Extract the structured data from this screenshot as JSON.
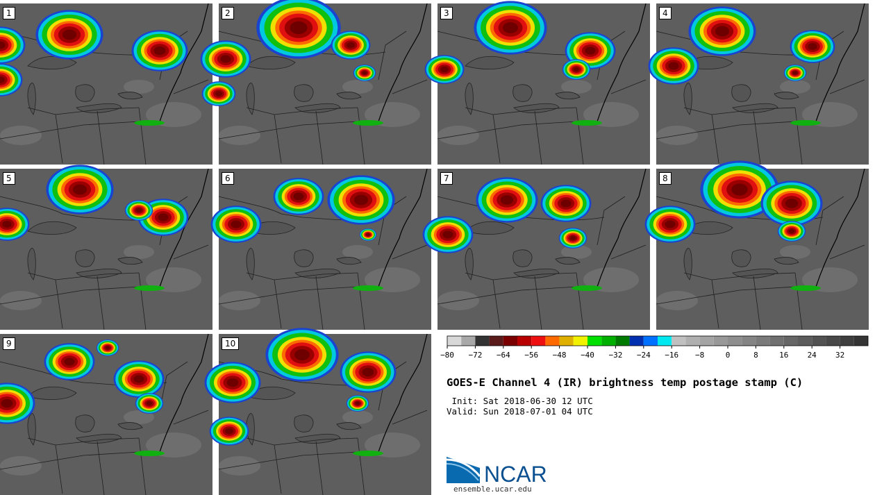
{
  "panels": [
    {
      "label": "1",
      "cells": [
        [
          0,
          60,
          0.9
        ],
        [
          0,
          110,
          0.8
        ],
        [
          100,
          45,
          1.2
        ],
        [
          230,
          68,
          1.0
        ]
      ]
    },
    {
      "label": "2",
      "cells": [
        [
          115,
          35,
          1.5
        ],
        [
          10,
          80,
          0.9
        ],
        [
          0,
          130,
          0.6
        ],
        [
          190,
          60,
          0.7
        ],
        [
          210,
          100,
          0.4
        ]
      ]
    },
    {
      "label": "3",
      "cells": [
        [
          105,
          35,
          1.3
        ],
        [
          220,
          68,
          0.9
        ],
        [
          10,
          95,
          0.7
        ],
        [
          200,
          95,
          0.5
        ]
      ]
    },
    {
      "label": "4",
      "cells": [
        [
          95,
          40,
          1.2
        ],
        [
          25,
          90,
          0.9
        ],
        [
          225,
          62,
          0.8
        ],
        [
          200,
          100,
          0.4
        ]
      ]
    },
    {
      "label": "5",
      "cells": [
        [
          115,
          30,
          1.2
        ],
        [
          10,
          80,
          0.8
        ],
        [
          235,
          70,
          0.9
        ],
        [
          200,
          60,
          0.5
        ]
      ]
    },
    {
      "label": "6",
      "cells": [
        [
          115,
          40,
          0.9
        ],
        [
          25,
          80,
          0.9
        ],
        [
          205,
          45,
          1.2
        ],
        [
          215,
          95,
          0.3
        ]
      ]
    },
    {
      "label": "7",
      "cells": [
        [
          100,
          45,
          1.1
        ],
        [
          185,
          50,
          0.9
        ],
        [
          15,
          95,
          0.9
        ],
        [
          195,
          100,
          0.5
        ]
      ]
    },
    {
      "label": "8",
      "cells": [
        [
          120,
          30,
          1.4
        ],
        [
          195,
          50,
          1.1
        ],
        [
          20,
          80,
          0.9
        ],
        [
          195,
          90,
          0.5
        ]
      ]
    },
    {
      "label": "9",
      "cells": [
        [
          100,
          40,
          0.9
        ],
        [
          200,
          65,
          0.9
        ],
        [
          10,
          100,
          1.0
        ],
        [
          215,
          100,
          0.5
        ],
        [
          155,
          20,
          0.4
        ]
      ]
    },
    {
      "label": "10",
      "cells": [
        [
          120,
          30,
          1.3
        ],
        [
          215,
          55,
          1.0
        ],
        [
          20,
          70,
          1.0
        ],
        [
          200,
          100,
          0.4
        ],
        [
          15,
          140,
          0.7
        ]
      ]
    }
  ],
  "colorbar": {
    "colors": [
      "#d8d8d8",
      "#a8a8a8",
      "#333333",
      "#5a1a1a",
      "#7a0000",
      "#b80000",
      "#ee1010",
      "#ff6a00",
      "#e0b000",
      "#f2f200",
      "#00e000",
      "#00b000",
      "#007a00",
      "#0030b0",
      "#0070ff",
      "#00e8f0",
      "#c0c0c0",
      "#b0b0b0",
      "#a4a4a4",
      "#989898",
      "#8e8e8e",
      "#848484",
      "#7a7a7a",
      "#707070",
      "#666666",
      "#5c5c5c",
      "#525252",
      "#484848",
      "#3e3e3e",
      "#343434"
    ],
    "ticks": [
      "−80",
      "−72",
      "−64",
      "−56",
      "−48",
      "−40",
      "−32",
      "−24",
      "−16",
      "−8",
      "0",
      "8",
      "16",
      "24",
      "32"
    ]
  },
  "title": "GOES-E Channel 4 (IR) brightness temp postage stamp (C)",
  "init": " Init: Sat 2018-06-30 12 UTC",
  "valid": "Valid: Sun 2018-07-01 04 UTC",
  "logo": {
    "text": "NCAR",
    "url": "ensemble.ucar.edu"
  }
}
